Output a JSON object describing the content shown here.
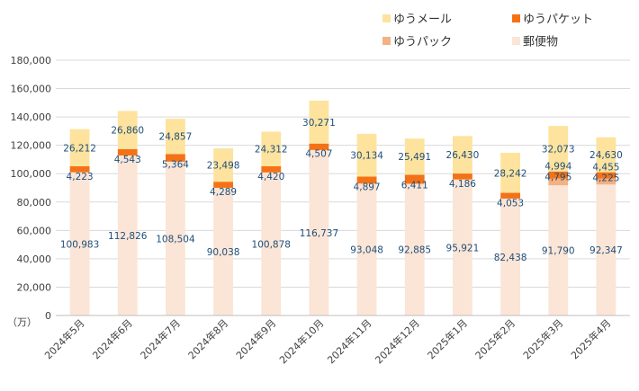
{
  "chart_data": {
    "type": "bar",
    "stacked": true,
    "categories": [
      "2024年5月",
      "2024年6月",
      "2024年7月",
      "2024年8月",
      "2024年9月",
      "2024年10月",
      "2024年11月",
      "2024年12月",
      "2025年1月",
      "2025年2月",
      "2025年3月",
      "2025年4月"
    ],
    "series": [
      {
        "name": "郵便物",
        "color": "#fbe5d6",
        "values": [
          100983,
          112826,
          108504,
          90038,
          100878,
          116737,
          93048,
          92885,
          95921,
          82438,
          91790,
          92347
        ]
      },
      {
        "name": "ゆうパック",
        "color": "#f4b183",
        "values": [
          0,
          0,
          0,
          0,
          0,
          0,
          0,
          0,
          0,
          0,
          4795,
          4225
        ]
      },
      {
        "name": "ゆうパケット",
        "color": "#f47216",
        "values": [
          4223,
          4543,
          5364,
          4289,
          4420,
          4507,
          4897,
          6411,
          4186,
          4053,
          4994,
          4455
        ]
      },
      {
        "name": "ゆうメール",
        "color": "#fde39d",
        "values": [
          26212,
          26860,
          24857,
          23498,
          24312,
          30271,
          30134,
          25491,
          26430,
          28242,
          32073,
          24630
        ]
      }
    ],
    "legend": {
      "placement": "top-right",
      "items": [
        {
          "label": "ゆうメール",
          "color": "#fde39d"
        },
        {
          "label": "ゆうパケット",
          "color": "#f47216"
        },
        {
          "label": "ゆうパック",
          "color": "#f4b183"
        },
        {
          "label": "郵便物",
          "color": "#fbe5d6"
        }
      ]
    },
    "ylim": [
      0,
      180000
    ],
    "yticks": [
      0,
      20000,
      40000,
      60000,
      80000,
      100000,
      120000,
      140000,
      160000,
      180000
    ],
    "ytick_labels": [
      "0",
      "20,000",
      "40,000",
      "60,000",
      "80,000",
      "100,000",
      "120,000",
      "140,000",
      "160,000",
      "180,000"
    ],
    "ylabel": "（万）",
    "grid": true,
    "title": "",
    "xlabel": ""
  }
}
